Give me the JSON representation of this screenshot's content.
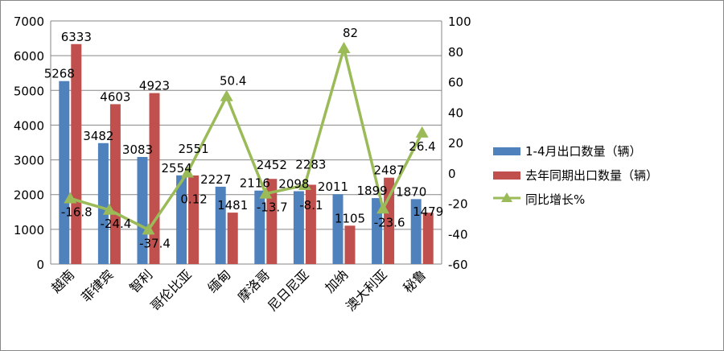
{
  "chart_data": {
    "type": "bar",
    "categories": [
      "越南",
      "菲律宾",
      "智利",
      "哥伦比亚",
      "缅甸",
      "摩洛哥",
      "尼日尼亚",
      "加纳",
      "澳大利亚",
      "秘鲁"
    ],
    "series": [
      {
        "name": "1-4月出口数量（辆）",
        "type": "bar",
        "axis": "left",
        "color": "#4F81BD",
        "values": [
          5268,
          3482,
          3083,
          2554,
          2227,
          2116,
          2098,
          2011,
          1899,
          1870
        ]
      },
      {
        "name": "去年同期出口数量（辆）",
        "type": "bar",
        "axis": "left",
        "color": "#C0504D",
        "values": [
          6333,
          4603,
          4923,
          2551,
          1481,
          2452,
          2283,
          1105,
          2487,
          1479
        ]
      },
      {
        "name": "同比增长%",
        "type": "line",
        "axis": "right",
        "color": "#9BBB59",
        "values": [
          -16.8,
          -24.4,
          -37.4,
          0.12,
          50.4,
          -13.7,
          -8.1,
          82,
          -23.6,
          26.4
        ]
      }
    ],
    "ylim": [
      0,
      7000
    ],
    "yticks": [
      0,
      1000,
      2000,
      3000,
      4000,
      5000,
      6000,
      7000
    ],
    "y2lim": [
      -60,
      100
    ],
    "y2ticks": [
      -60,
      -40,
      -20,
      0,
      20,
      40,
      60,
      80,
      100
    ],
    "grid": true,
    "legend": "right"
  }
}
